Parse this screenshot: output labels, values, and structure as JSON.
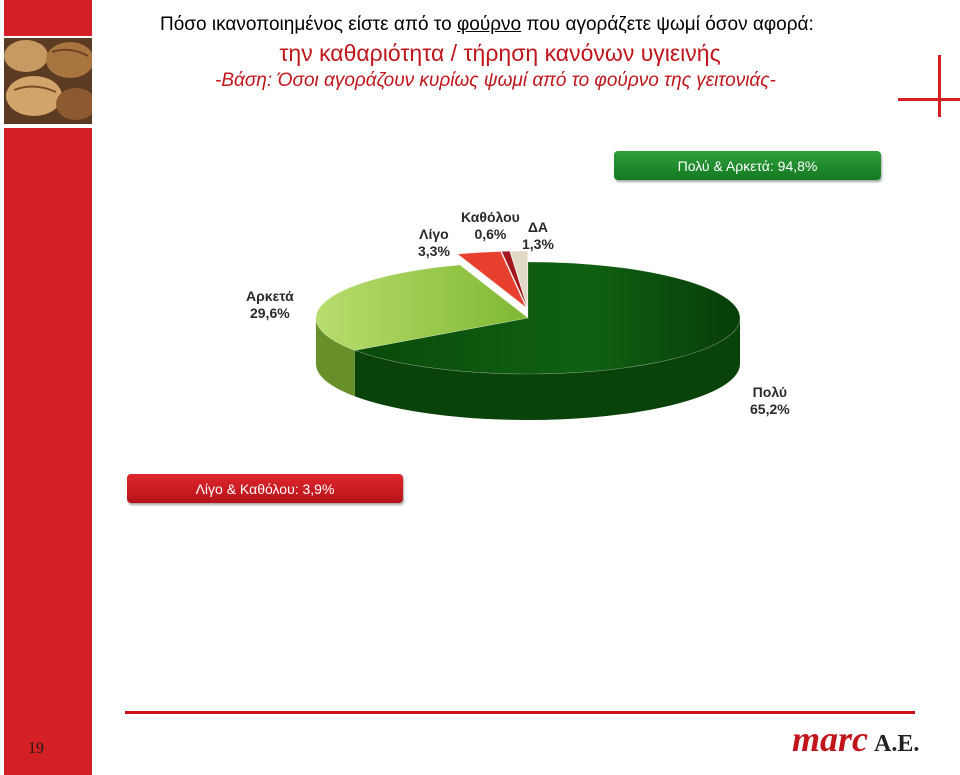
{
  "header": {
    "question_pre": "Πόσο ικανοποιημένος είστε από το",
    "question_link": "φούρνο",
    "question_post": "που αγοράζετε ψωμί όσον αφορά:",
    "subject": "την καθαριότητα / τήρηση κανόνων υγιεινής",
    "base": "-Βάση: Όσοι αγοράζουν κυρίως ψωμί από το φούρνο της γειτονιάς-"
  },
  "summary": {
    "positive": "Πολύ & Αρκετά: 94,8%",
    "negative": "Λίγο & Καθόλου: 3,9%"
  },
  "chart_data": {
    "type": "pie",
    "slices": [
      {
        "label": "Πολύ",
        "value": 65.2,
        "text": "65,2%",
        "color": "#0e5d0e"
      },
      {
        "label": "Αρκετά",
        "value": 29.6,
        "text": "29,6%",
        "color": "#8fc63a"
      },
      {
        "label": "Λίγο",
        "value": 3.3,
        "text": "3,3%",
        "color": "#e8402e"
      },
      {
        "label": "Καθόλου",
        "value": 0.6,
        "text": "0,6%",
        "color": "#a3161b"
      },
      {
        "label": "ΔΑ",
        "value": 1.3,
        "text": "1,3%",
        "color": "#e2d8c6"
      }
    ]
  },
  "footer": {
    "page_number": "19",
    "logo_main": "marc",
    "logo_suffix": "A.E."
  },
  "colors": {
    "brand_red": "#d41f24",
    "positive_green": "#1f8a2c",
    "negative_red": "#c8141b"
  }
}
